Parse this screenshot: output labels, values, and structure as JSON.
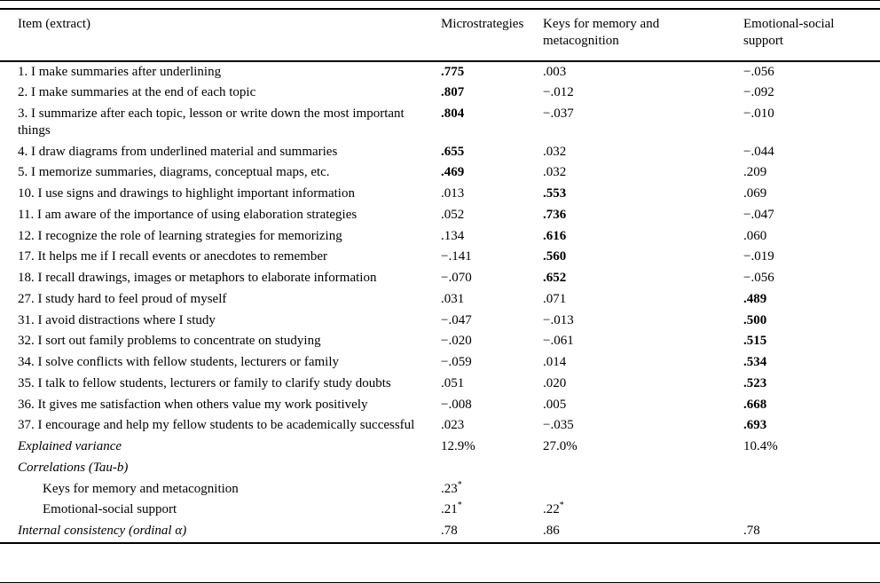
{
  "table": {
    "columns": [
      "Item (extract)",
      "Microstrategies",
      "Keys for memory and metacognition",
      "Emotional-social support"
    ],
    "rows": [
      {
        "label": "1. I make summaries after underlining",
        "cells": [
          {
            "t": ".775",
            "b": true
          },
          {
            "t": ".003"
          },
          {
            "t": "−.056"
          }
        ]
      },
      {
        "label": "2. I make summaries at the end of each topic",
        "cells": [
          {
            "t": ".807",
            "b": true
          },
          {
            "t": "−.012"
          },
          {
            "t": "−.092"
          }
        ]
      },
      {
        "label": "3. I summarize after each topic, lesson or write down the most important things",
        "cells": [
          {
            "t": ".804",
            "b": true
          },
          {
            "t": "−.037"
          },
          {
            "t": "−.010"
          }
        ]
      },
      {
        "label": "4. I draw diagrams from underlined material and summaries",
        "cells": [
          {
            "t": ".655",
            "b": true
          },
          {
            "t": ".032"
          },
          {
            "t": "−.044"
          }
        ]
      },
      {
        "label": "5. I memorize summaries, diagrams, conceptual maps, etc.",
        "cells": [
          {
            "t": ".469",
            "b": true
          },
          {
            "t": ".032"
          },
          {
            "t": ".209"
          }
        ]
      },
      {
        "label": "10. I use signs and drawings to highlight important information",
        "cells": [
          {
            "t": ".013"
          },
          {
            "t": ".553",
            "b": true
          },
          {
            "t": ".069"
          }
        ]
      },
      {
        "label": "11. I am aware of the importance of using elaboration strategies",
        "cells": [
          {
            "t": ".052"
          },
          {
            "t": ".736",
            "b": true
          },
          {
            "t": "−.047"
          }
        ]
      },
      {
        "label": "12. I recognize the role of learning strategies for memorizing",
        "cells": [
          {
            "t": ".134"
          },
          {
            "t": ".616",
            "b": true
          },
          {
            "t": ".060"
          }
        ]
      },
      {
        "label": "17. It helps me if I recall events or anecdotes to remember",
        "cells": [
          {
            "t": "−.141"
          },
          {
            "t": ".560",
            "b": true
          },
          {
            "t": "−.019"
          }
        ]
      },
      {
        "label": "18. I recall drawings, images or metaphors to elaborate information",
        "cells": [
          {
            "t": "−.070"
          },
          {
            "t": ".652",
            "b": true
          },
          {
            "t": "−.056"
          }
        ]
      },
      {
        "label": "27. I study hard to feel proud of myself",
        "cells": [
          {
            "t": ".031"
          },
          {
            "t": ".071"
          },
          {
            "t": ".489",
            "b": true
          }
        ]
      },
      {
        "label": "31. I avoid distractions where I study",
        "cells": [
          {
            "t": "−.047"
          },
          {
            "t": "−.013"
          },
          {
            "t": ".500",
            "b": true
          }
        ]
      },
      {
        "label": "32. I sort out family problems to concentrate on studying",
        "cells": [
          {
            "t": "−.020"
          },
          {
            "t": "−.061"
          },
          {
            "t": ".515",
            "b": true
          }
        ]
      },
      {
        "label": "34. I solve conflicts with fellow students, lecturers or family",
        "cells": [
          {
            "t": "−.059"
          },
          {
            "t": ".014"
          },
          {
            "t": ".534",
            "b": true
          }
        ]
      },
      {
        "label": "35. I talk to fellow students, lecturers or family to clarify study doubts",
        "cells": [
          {
            "t": ".051"
          },
          {
            "t": ".020"
          },
          {
            "t": ".523",
            "b": true
          }
        ]
      },
      {
        "label": "36. It gives me satisfaction when others value my work positively",
        "cells": [
          {
            "t": "−.008"
          },
          {
            "t": ".005"
          },
          {
            "t": ".668",
            "b": true
          }
        ]
      },
      {
        "label": "37. I encourage and help my fellow students to be academically successful",
        "cells": [
          {
            "t": ".023"
          },
          {
            "t": "−.035"
          },
          {
            "t": ".693",
            "b": true
          }
        ]
      },
      {
        "label": "Explained variance",
        "italic": true,
        "cells": [
          {
            "t": "12.9%"
          },
          {
            "t": "27.0%"
          },
          {
            "t": "10.4%"
          }
        ]
      },
      {
        "label": "Correlations (Tau-b)",
        "italic": true,
        "cells": [
          {
            "t": ""
          },
          {
            "t": ""
          },
          {
            "t": ""
          }
        ]
      },
      {
        "label": "Keys for memory and metacognition",
        "indent": true,
        "cells": [
          {
            "t": ".23",
            "sup": "*"
          },
          {
            "t": ""
          },
          {
            "t": ""
          }
        ]
      },
      {
        "label": "Emotional-social support",
        "indent": true,
        "cells": [
          {
            "t": ".21",
            "sup": "*"
          },
          {
            "t": ".22",
            "sup": "*"
          },
          {
            "t": ""
          }
        ]
      },
      {
        "label": "Internal consistency (ordinal α)",
        "italic": true,
        "cells": [
          {
            "t": ".78"
          },
          {
            "t": ".86"
          },
          {
            "t": ".78"
          }
        ]
      }
    ]
  }
}
